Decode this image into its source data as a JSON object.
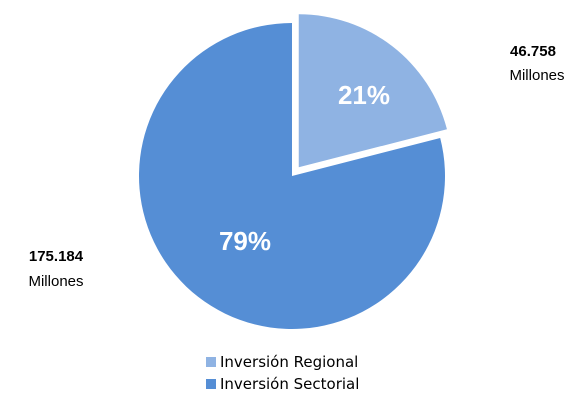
{
  "chart_data": {
    "type": "pie",
    "title": "",
    "slices": [
      {
        "name": "Inversión Regional",
        "percent": 21,
        "percent_label": "21%",
        "value": 46.758,
        "value_label": "46.758",
        "unit": "Millones",
        "color": "#8fb3e3",
        "exploded": true
      },
      {
        "name": "Inversión Sectorial",
        "percent": 79,
        "percent_label": "79%",
        "value": 175.184,
        "value_label": "175.184",
        "unit": "Millones",
        "color": "#558ed5",
        "exploded": false
      }
    ],
    "legend_position": "bottom",
    "start_angle_deg": 0,
    "direction": "clockwise"
  }
}
